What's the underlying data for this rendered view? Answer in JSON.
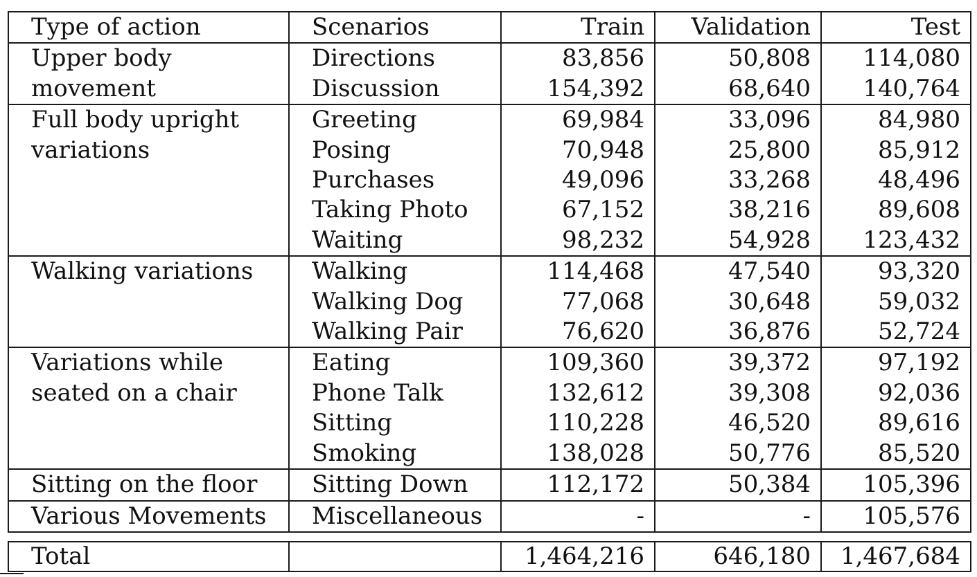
{
  "headers": [
    "Type of action",
    "Scenarios",
    "Train",
    "Validation",
    "Test"
  ],
  "groups": [
    {
      "type_lines": [
        "Upper body",
        "movement"
      ],
      "rows": [
        {
          "scenario": "Directions",
          "train": "83,856",
          "validation": "50,808",
          "test": "114,080"
        },
        {
          "scenario": "Discussion",
          "train": "154,392",
          "validation": "68,640",
          "test": "140,764"
        }
      ]
    },
    {
      "type_lines": [
        "Full body upright",
        "variations"
      ],
      "rows": [
        {
          "scenario": "Greeting",
          "train": "69,984",
          "validation": "33,096",
          "test": "84,980"
        },
        {
          "scenario": "Posing",
          "train": "70,948",
          "validation": "25,800",
          "test": "85,912"
        },
        {
          "scenario": "Purchases",
          "train": "49,096",
          "validation": "33,268",
          "test": "48,496"
        },
        {
          "scenario": "Taking Photo",
          "train": "67,152",
          "validation": "38,216",
          "test": "89,608"
        },
        {
          "scenario": "Waiting",
          "train": "98,232",
          "validation": "54,928",
          "test": "123,432"
        }
      ]
    },
    {
      "type_lines": [
        "Walking variations"
      ],
      "rows": [
        {
          "scenario": "Walking",
          "train": "114,468",
          "validation": "47,540",
          "test": "93,320"
        },
        {
          "scenario": "Walking Dog",
          "train": "77,068",
          "validation": "30,648",
          "test": "59,032"
        },
        {
          "scenario": "Walking Pair",
          "train": "76,620",
          "validation": "36,876",
          "test": "52,724"
        }
      ]
    },
    {
      "type_lines": [
        "Variations while",
        "seated on a chair"
      ],
      "rows": [
        {
          "scenario": "Eating",
          "train": "109,360",
          "validation": "39,372",
          "test": "97,192"
        },
        {
          "scenario": "Phone Talk",
          "train": "132,612",
          "validation": "39,308",
          "test": "92,036"
        },
        {
          "scenario": "Sitting",
          "train": "110,228",
          "validation": "46,520",
          "test": "89,616"
        },
        {
          "scenario": "Smoking",
          "train": "138,028",
          "validation": "50,776",
          "test": "85,520"
        }
      ]
    },
    {
      "type_lines": [
        "Sitting on the floor"
      ],
      "rows": [
        {
          "scenario": "Sitting Down",
          "train": "112,172",
          "validation": "50,384",
          "test": "105,396"
        }
      ]
    },
    {
      "type_lines": [
        "Various Movements"
      ],
      "rows": [
        {
          "scenario": "Miscellaneous",
          "train": "-",
          "validation": "-",
          "test": "105,576"
        }
      ]
    }
  ],
  "total": {
    "label": "Total",
    "scenario": "",
    "train": "1,464,216",
    "validation": "646,180",
    "test": "1,467,684"
  }
}
